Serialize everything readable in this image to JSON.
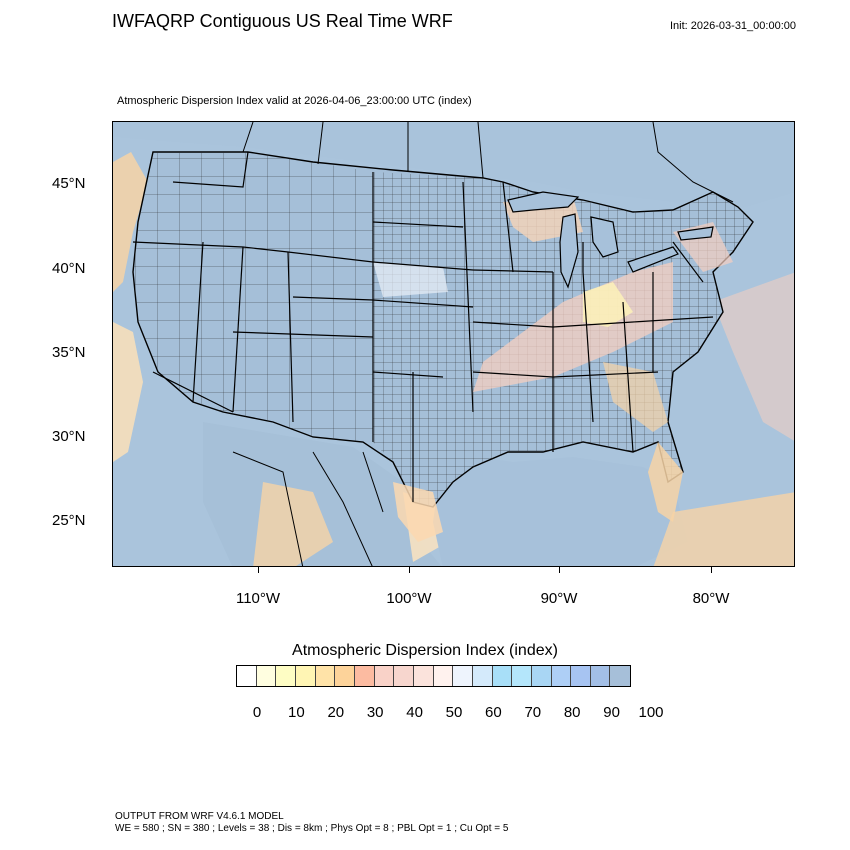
{
  "header": {
    "title": "IWFAQRP Contiguous US Real Time WRF",
    "init": "Init: 2026-03-31_00:00:00"
  },
  "map": {
    "subtitle": "Atmospheric Dispersion Index valid at 2026-04-06_23:00:00 UTC   (index)",
    "lat_labels": [
      "45°N",
      "40°N",
      "35°N",
      "30°N",
      "25°N"
    ],
    "lon_labels": [
      "110°W",
      "100°W",
      "90°W",
      "80°W"
    ],
    "colors": {
      "ocean": "#aac4dc",
      "land_dominant": "#a5bfd8",
      "county_lines": "#2b2b2b",
      "state_lines": "#000000",
      "coastal_warm": "#f7d3a6",
      "light_pink": "#f5cfc0"
    }
  },
  "legend": {
    "title": "Atmospheric Dispersion Index  (index)",
    "tick_labels": [
      "0",
      "10",
      "20",
      "30",
      "40",
      "50",
      "60",
      "70",
      "80",
      "90",
      "100"
    ],
    "colors": [
      "#ffffff",
      "#fffee0",
      "#fefdc4",
      "#fff5b4",
      "#ffe3a8",
      "#fdd39a",
      "#fcbba1",
      "#f9d2c8",
      "#f7d6ce",
      "#fbe3dc",
      "#fff2ee",
      "#eef4fd",
      "#d4eafb",
      "#a8dff8",
      "#b4e6fb",
      "#a9d6f4",
      "#aecff6",
      "#a7c4f2",
      "#a3bfe6",
      "#a6bfd9"
    ]
  },
  "footer": {
    "line1": "OUTPUT FROM WRF V4.6.1 MODEL",
    "line2": "WE = 580 ; SN = 380 ; Levels = 38 ; Dis = 8km ; Phys Opt = 8 ; PBL Opt = 1 ; Cu Opt = 5"
  }
}
